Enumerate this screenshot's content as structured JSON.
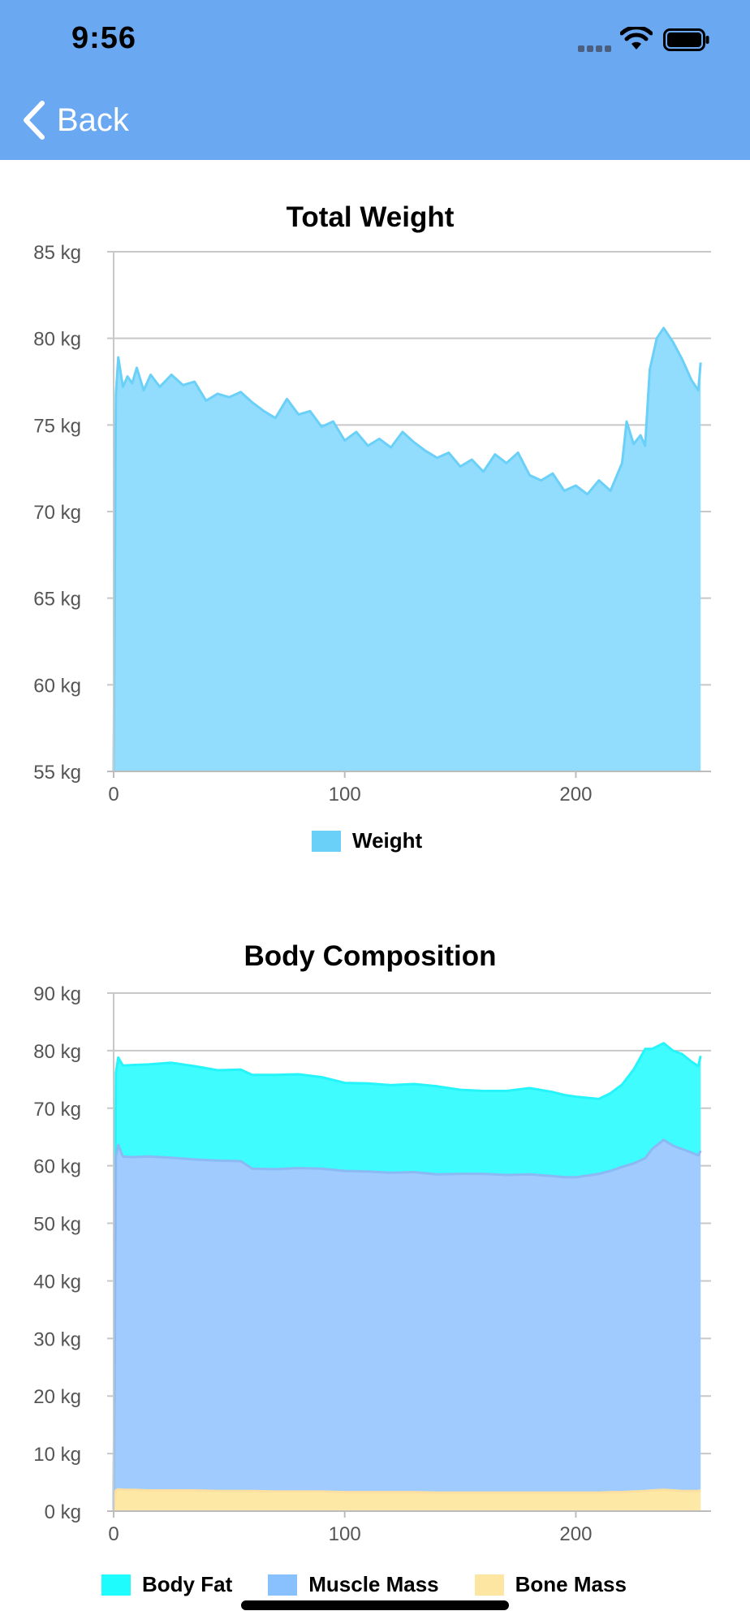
{
  "status_bar": {
    "time": "9:56",
    "icons": [
      "signal-dots-icon",
      "wifi-icon",
      "battery-icon"
    ]
  },
  "nav": {
    "back_label": "Back",
    "back_icon": "chevron-left-icon"
  },
  "colors": {
    "header": "#6aa8f2",
    "weight_fill": "#92ddfd",
    "weight_line": "#6bd0f8",
    "body_fat": "#3ffcff",
    "muscle_mass": "#9fcbfe",
    "bone_mass": "#fde8a5"
  },
  "chart_data": [
    {
      "type": "area",
      "title": "Total Weight",
      "ylim": [
        55,
        85
      ],
      "xlim": [
        0,
        255
      ],
      "yticks": [
        "55 kg",
        "60 kg",
        "65 kg",
        "70 kg",
        "75 kg",
        "80 kg",
        "85 kg"
      ],
      "xticks": [
        "0",
        "100",
        "200"
      ],
      "legend": "bottom-center",
      "grid": true,
      "series": [
        {
          "name": "Weight",
          "x": [
            0,
            1,
            2,
            4,
            6,
            8,
            10,
            13,
            16,
            20,
            25,
            30,
            35,
            40,
            45,
            50,
            55,
            60,
            65,
            70,
            75,
            80,
            85,
            90,
            95,
            100,
            105,
            110,
            115,
            120,
            125,
            130,
            135,
            140,
            145,
            150,
            155,
            160,
            165,
            170,
            175,
            180,
            185,
            190,
            195,
            200,
            205,
            210,
            215,
            220,
            222,
            225,
            228,
            230,
            232,
            235,
            238,
            242,
            246,
            250,
            253,
            254
          ],
          "values": [
            55,
            76.8,
            78.9,
            77.2,
            77.8,
            77.4,
            78.3,
            77.0,
            77.9,
            77.2,
            77.9,
            77.3,
            77.5,
            76.4,
            76.8,
            76.6,
            76.9,
            76.3,
            75.8,
            75.4,
            76.5,
            75.6,
            75.8,
            74.9,
            75.2,
            74.1,
            74.6,
            73.8,
            74.2,
            73.7,
            74.6,
            74.0,
            73.5,
            73.1,
            73.4,
            72.6,
            73.0,
            72.3,
            73.3,
            72.8,
            73.4,
            72.1,
            71.8,
            72.2,
            71.2,
            71.5,
            71.0,
            71.8,
            71.2,
            72.8,
            75.2,
            73.9,
            74.4,
            73.8,
            78.2,
            80.0,
            80.6,
            79.8,
            78.8,
            77.6,
            77.0,
            78.6
          ]
        }
      ]
    },
    {
      "type": "area",
      "title": "Body Composition",
      "ylim": [
        0,
        90
      ],
      "xlim": [
        0,
        255
      ],
      "yticks": [
        "0 kg",
        "10 kg",
        "20 kg",
        "30 kg",
        "40 kg",
        "50 kg",
        "60 kg",
        "70 kg",
        "80 kg",
        "90 kg"
      ],
      "xticks": [
        "0",
        "100",
        "200"
      ],
      "legend": "bottom",
      "grid": true,
      "stacked": true,
      "x": [
        0,
        1,
        2,
        4,
        8,
        15,
        25,
        35,
        45,
        55,
        60,
        70,
        80,
        90,
        100,
        110,
        120,
        130,
        140,
        150,
        160,
        170,
        180,
        190,
        195,
        200,
        210,
        215,
        220,
        225,
        230,
        233,
        238,
        242,
        246,
        250,
        253,
        254
      ],
      "series": [
        {
          "name": "Bone Mass",
          "values": [
            0,
            3.6,
            3.8,
            3.7,
            3.7,
            3.6,
            3.6,
            3.6,
            3.5,
            3.5,
            3.5,
            3.4,
            3.4,
            3.4,
            3.3,
            3.3,
            3.3,
            3.3,
            3.2,
            3.2,
            3.2,
            3.2,
            3.2,
            3.2,
            3.2,
            3.2,
            3.2,
            3.3,
            3.3,
            3.4,
            3.5,
            3.6,
            3.7,
            3.6,
            3.5,
            3.5,
            3.5,
            3.6
          ]
        },
        {
          "name": "Muscle Mass",
          "values": [
            0,
            58.0,
            59.8,
            57.9,
            57.8,
            58.0,
            57.8,
            57.5,
            57.4,
            57.3,
            56.0,
            56.0,
            56.2,
            56.1,
            55.8,
            55.7,
            55.5,
            55.6,
            55.3,
            55.4,
            55.4,
            55.2,
            55.3,
            55.0,
            54.8,
            54.8,
            55.4,
            55.8,
            56.5,
            57.0,
            57.8,
            59.3,
            60.8,
            59.9,
            59.4,
            58.8,
            58.3,
            59.0
          ]
        },
        {
          "name": "Body Fat",
          "values": [
            0,
            14.6,
            15.2,
            15.8,
            16.0,
            16.0,
            16.5,
            16.2,
            15.7,
            15.9,
            16.3,
            16.4,
            16.3,
            15.9,
            15.3,
            15.3,
            15.2,
            15.3,
            15.3,
            14.6,
            14.4,
            14.6,
            15.0,
            14.6,
            14.3,
            14.0,
            13.0,
            13.5,
            14.3,
            16.3,
            19.0,
            17.4,
            16.8,
            16.5,
            16.5,
            15.8,
            15.5,
            16.5
          ]
        }
      ]
    }
  ]
}
